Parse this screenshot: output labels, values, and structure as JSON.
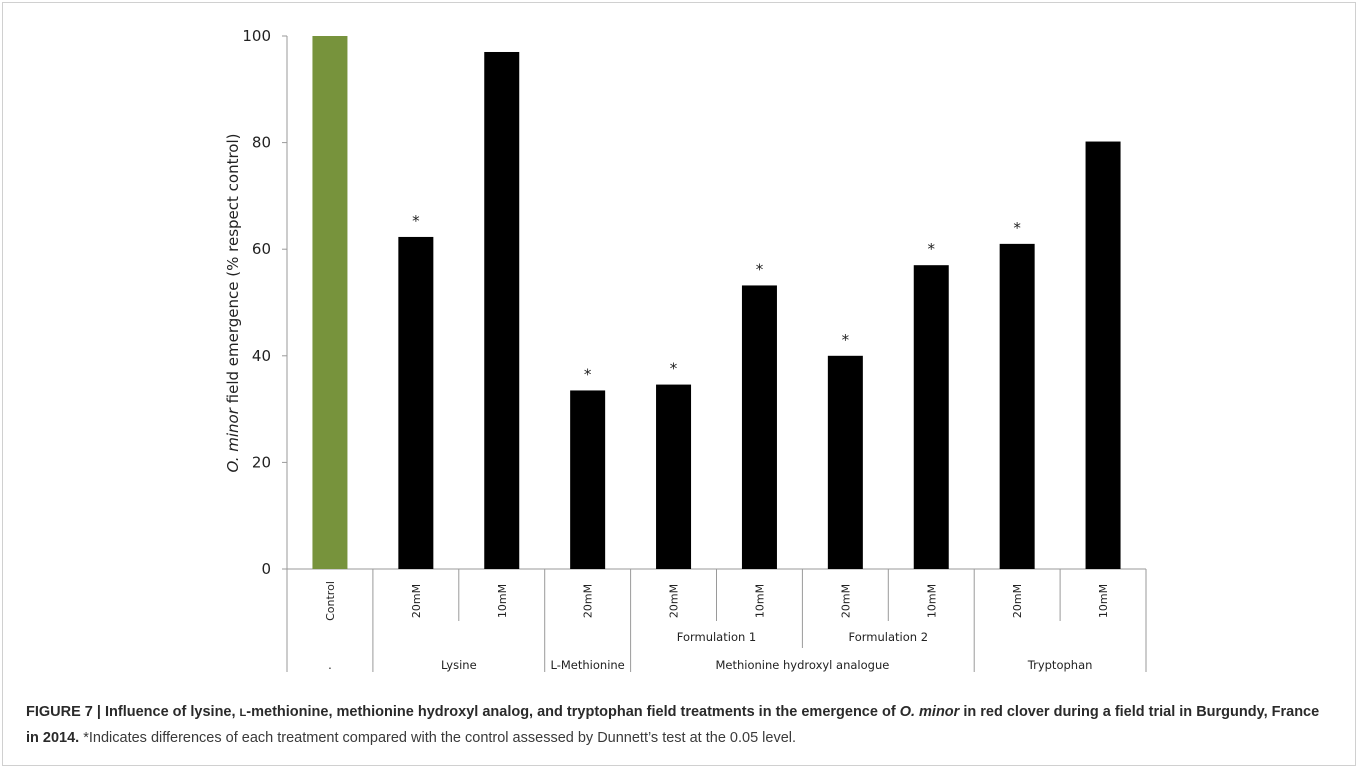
{
  "chart_data": {
    "type": "bar",
    "ylabel": {
      "italic": "O. minor",
      "rest": " field emergence  (% respect control)"
    },
    "ylim": [
      0,
      100
    ],
    "yticks": [
      0,
      20,
      40,
      60,
      80,
      100
    ],
    "grid": false,
    "legend": "none",
    "categories": [
      "Control",
      "20mM",
      "10mM",
      "20mM",
      "20mM",
      "10mM",
      "20mM",
      "10mM",
      "20mM",
      "10mM"
    ],
    "values": [
      100,
      62.3,
      97,
      33.5,
      34.6,
      53.2,
      40,
      57,
      61,
      80.2
    ],
    "significant": [
      false,
      true,
      false,
      true,
      true,
      true,
      true,
      true,
      true,
      false
    ],
    "bar_colors": [
      "#77933c",
      "#000000",
      "#000000",
      "#000000",
      "#000000",
      "#000000",
      "#000000",
      "#000000",
      "#000000",
      "#000000"
    ],
    "significance_marker": "*",
    "groups_level2": [
      {
        "label": "Formulation 1",
        "start": 4,
        "end": 5
      },
      {
        "label": "Formulation 2",
        "start": 6,
        "end": 7
      }
    ],
    "groups_level3": [
      {
        "label": ".",
        "start": 0,
        "end": 0
      },
      {
        "label": "Lysine",
        "start": 1,
        "end": 2
      },
      {
        "label": "L-Methionine",
        "start": 3,
        "end": 3
      },
      {
        "label": "Methionine hydroxyl analogue",
        "start": 4,
        "end": 7
      },
      {
        "label": "Tryptophan",
        "start": 8,
        "end": 9
      }
    ]
  },
  "caption": {
    "figure_label": "FIGURE 7 | Influence of lysine, ",
    "l_prefix": "L",
    "title_rest_1": "-methionine, methionine hydroxyl analog, and tryptophan field treatments in the emergence of ",
    "species": "O. minor",
    "title_rest_2": " in red clover during a field trial in Burgundy, France in 2014.",
    "note": " *Indicates differences of each treatment compared with the control assessed by Dunnett’s test at the 0.05 level."
  }
}
